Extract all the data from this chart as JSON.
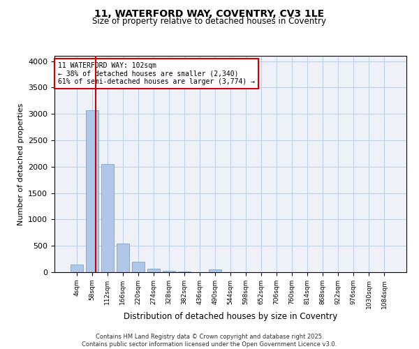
{
  "title_line1": "11, WATERFORD WAY, COVENTRY, CV3 1LE",
  "title_line2": "Size of property relative to detached houses in Coventry",
  "xlabel": "Distribution of detached houses by size in Coventry",
  "ylabel": "Number of detached properties",
  "bar_labels": [
    "4sqm",
    "58sqm",
    "112sqm",
    "166sqm",
    "220sqm",
    "274sqm",
    "328sqm",
    "382sqm",
    "436sqm",
    "490sqm",
    "544sqm",
    "598sqm",
    "652sqm",
    "706sqm",
    "760sqm",
    "814sqm",
    "868sqm",
    "922sqm",
    "976sqm",
    "1030sqm",
    "1084sqm"
  ],
  "bar_values": [
    150,
    3070,
    2050,
    540,
    200,
    70,
    30,
    10,
    0,
    50,
    0,
    0,
    0,
    0,
    0,
    0,
    0,
    0,
    0,
    0,
    0
  ],
  "bar_color": "#aec6e8",
  "bar_edge_color": "#5a9fd4",
  "grid_color": "#c0d0e8",
  "background_color": "#eef2f8",
  "vline_color": "#cc0000",
  "annotation_text": "11 WATERFORD WAY: 102sqm\n← 38% of detached houses are smaller (2,340)\n61% of semi-detached houses are larger (3,774) →",
  "annotation_box_color": "#cc0000",
  "ylim": [
    0,
    4100
  ],
  "yticks": [
    0,
    500,
    1000,
    1500,
    2000,
    2500,
    3000,
    3500,
    4000
  ],
  "footer_line1": "Contains HM Land Registry data © Crown copyright and database right 2025.",
  "footer_line2": "Contains public sector information licensed under the Open Government Licence v3.0."
}
